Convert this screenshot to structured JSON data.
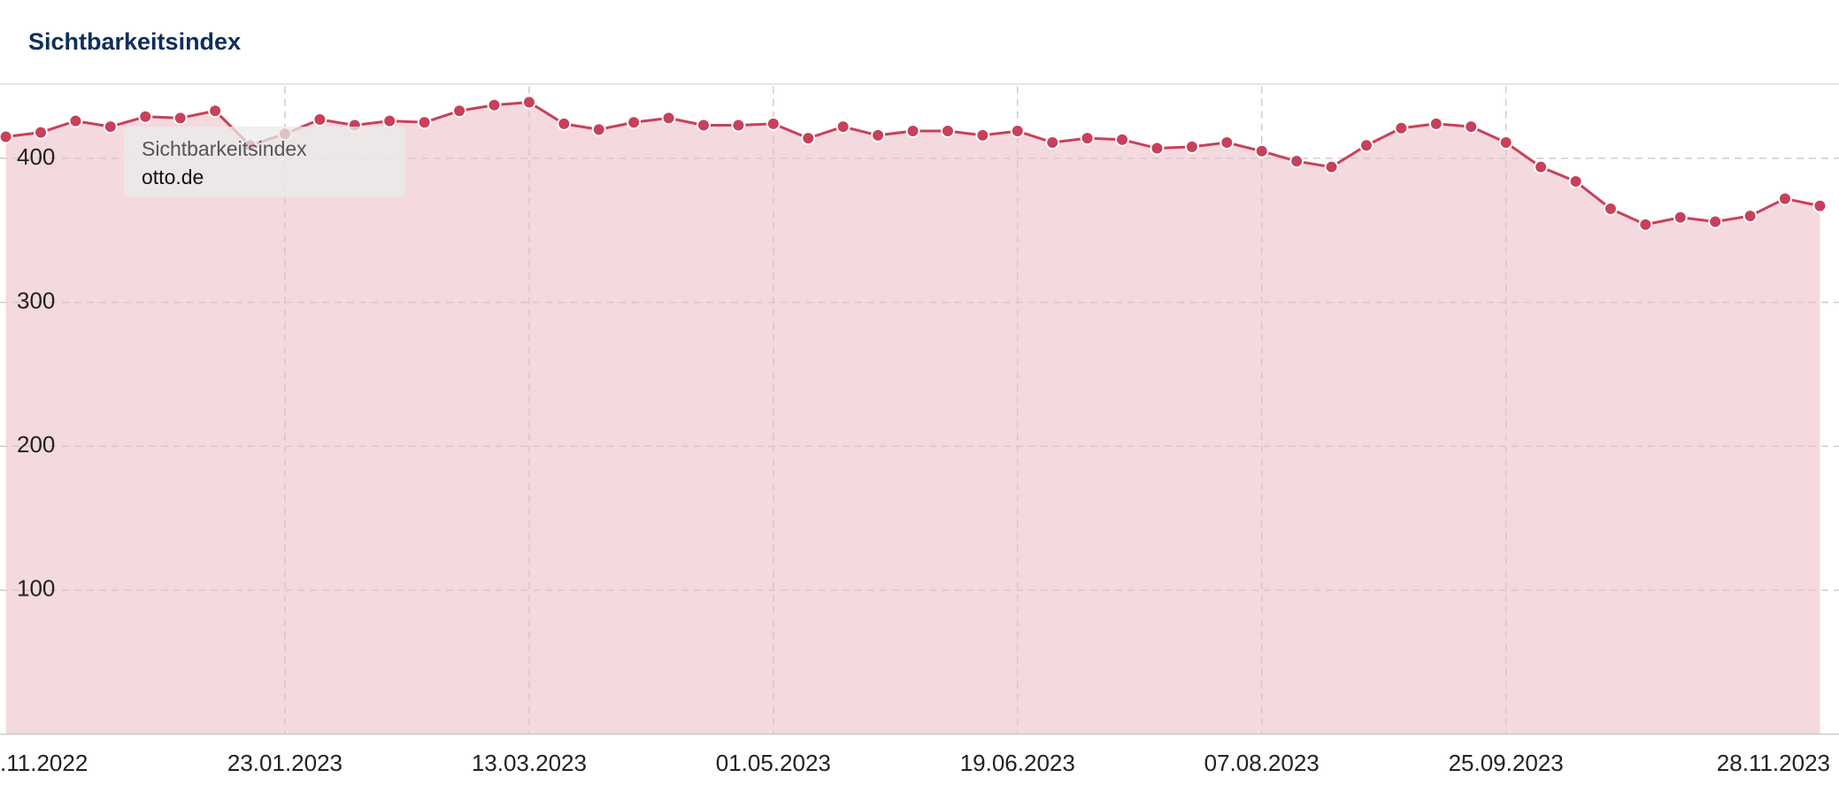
{
  "chart_data": {
    "type": "area",
    "title": "Sichtbarkeitsindex",
    "categories": [
      ".11.2022",
      null,
      null,
      null,
      null,
      null,
      null,
      null,
      "23.01.2023",
      null,
      null,
      null,
      null,
      null,
      null,
      "13.03.2023",
      null,
      null,
      null,
      null,
      null,
      null,
      "01.05.2023",
      null,
      null,
      null,
      null,
      null,
      null,
      "19.06.2023",
      null,
      null,
      null,
      null,
      null,
      null,
      "07.08.2023",
      null,
      null,
      null,
      null,
      null,
      null,
      "25.09.2023",
      null,
      null,
      null,
      null,
      null,
      null,
      null,
      null,
      "28.11.2023"
    ],
    "values": [
      415,
      418,
      426,
      422,
      429,
      428,
      433,
      409,
      417,
      427,
      423,
      426,
      425,
      433,
      437,
      439,
      424,
      420,
      425,
      428,
      423,
      423,
      424,
      414,
      422,
      416,
      419,
      419,
      416,
      419,
      411,
      414,
      413,
      407,
      408,
      411,
      405,
      398,
      394,
      409,
      421,
      424,
      422,
      411,
      394,
      384,
      365,
      354,
      359,
      356,
      360,
      372,
      367
    ],
    "color": "#c8405a",
    "fill": "#f4d9de",
    "ylim": [
      0,
      450
    ],
    "yticks": [
      100,
      200,
      300,
      400
    ],
    "grid": true,
    "tooltip": {
      "title": "Sichtbarkeitsindex",
      "label": "otto.de"
    }
  }
}
